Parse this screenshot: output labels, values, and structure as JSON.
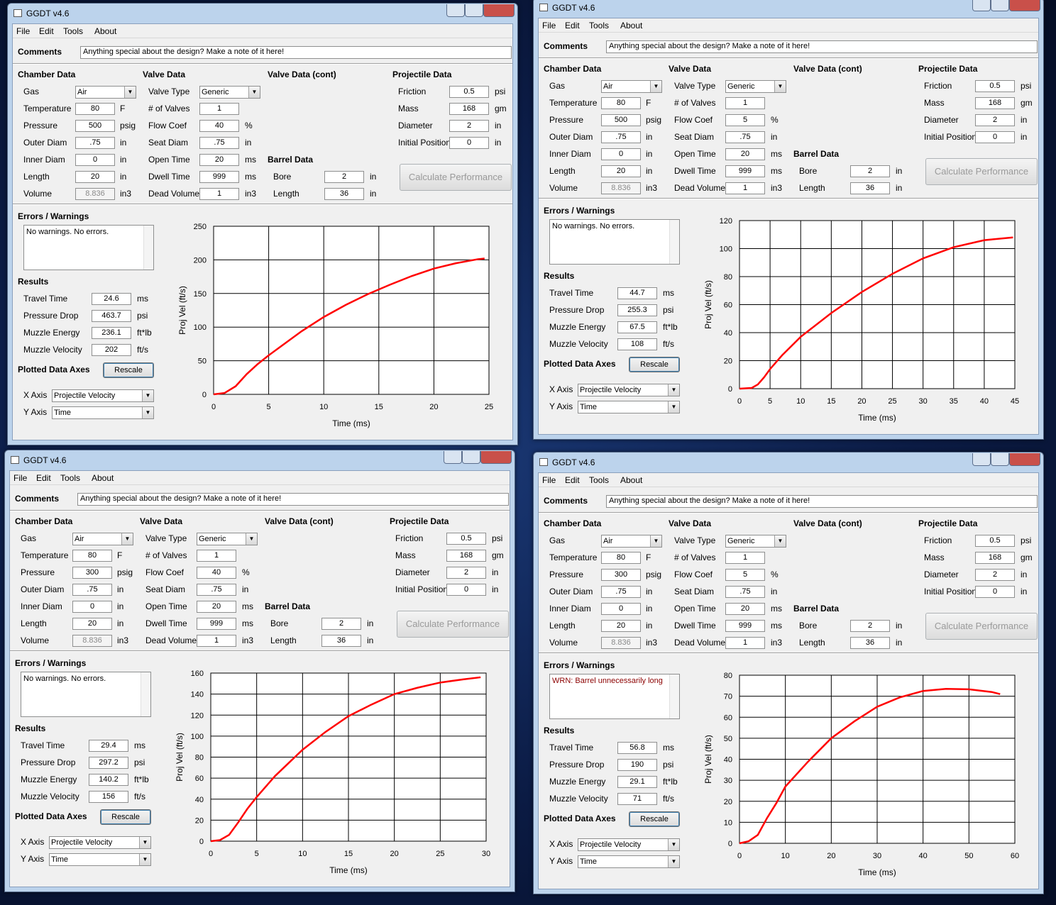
{
  "windows": [
    {
      "title": "GGDT v4.6",
      "menu": [
        "File",
        "Edit",
        "Tools",
        "About"
      ],
      "comments_label": "Comments",
      "comments": "Anything special about the design?  Make a note of it here!",
      "chamber": {
        "header": "Chamber Data",
        "fields": [
          {
            "label": "Gas",
            "value": "Air"
          },
          {
            "label": "Temperature",
            "value": "80",
            "unit": "F"
          },
          {
            "label": "Pressure",
            "value": "500",
            "unit": "psig"
          },
          {
            "label": "Outer Diam",
            "value": ".75",
            "unit": "in"
          },
          {
            "label": "Inner Diam",
            "value": "0",
            "unit": "in"
          },
          {
            "label": "Length",
            "value": "20",
            "unit": "in"
          },
          {
            "label": "Volume",
            "value": "8.836",
            "unit": "in3"
          }
        ]
      },
      "valve": {
        "header": "Valve Data",
        "fields": [
          {
            "label": "Valve Type",
            "value": "Generic"
          },
          {
            "label": "# of Valves",
            "value": "1"
          },
          {
            "label": "Flow Coef",
            "value": "40",
            "unit": "%"
          },
          {
            "label": "Seat Diam",
            "value": ".75",
            "unit": "in"
          },
          {
            "label": "Open Time",
            "value": "20",
            "unit": "ms"
          },
          {
            "label": "Dwell Time",
            "value": "999",
            "unit": "ms"
          },
          {
            "label": "Dead Volume",
            "value": "1",
            "unit": "in3"
          }
        ]
      },
      "valve_cont": {
        "header": "Valve Data (cont)"
      },
      "barrel": {
        "header": "Barrel Data",
        "fields": [
          {
            "label": "Bore",
            "value": "2",
            "unit": "in"
          },
          {
            "label": "Length",
            "value": "36",
            "unit": "in"
          }
        ]
      },
      "projectile": {
        "header": "Projectile Data",
        "fields": [
          {
            "label": "Friction",
            "value": "0.5",
            "unit": "psi"
          },
          {
            "label": "Mass",
            "value": "168",
            "unit": "gm"
          },
          {
            "label": "Diameter",
            "value": "2",
            "unit": "in"
          },
          {
            "label": "Initial Position",
            "value": "0",
            "unit": "in"
          }
        ]
      },
      "calculate": "Calculate Performance",
      "errors_label": "Errors / Warnings",
      "errors": "No warnings.  No errors.",
      "errors_color": "#000000",
      "results": {
        "header": "Results",
        "fields": [
          {
            "label": "Travel Time",
            "value": "24.6",
            "unit": "ms"
          },
          {
            "label": "Pressure Drop",
            "value": "463.7",
            "unit": "psi"
          },
          {
            "label": "Muzzle Energy",
            "value": "236.1",
            "unit": "ft*lb"
          },
          {
            "label": "Muzzle Velocity",
            "value": "202",
            "unit": "ft/s"
          }
        ]
      },
      "axes": {
        "header": "Plotted Data Axes",
        "rescale": "Rescale",
        "fields": [
          {
            "label": "X Axis",
            "value": "Projectile Velocity"
          },
          {
            "label": "Y Axis",
            "value": "Time"
          }
        ]
      }
    },
    {
      "title": "GGDT v4.6",
      "menu": [
        "File",
        "Edit",
        "Tools",
        "About"
      ],
      "comments_label": "Comments",
      "comments": "Anything special about the design?  Make a note of it here!",
      "chamber": {
        "header": "Chamber Data",
        "fields": [
          {
            "label": "Gas",
            "value": "Air"
          },
          {
            "label": "Temperature",
            "value": "80",
            "unit": "F"
          },
          {
            "label": "Pressure",
            "value": "500",
            "unit": "psig"
          },
          {
            "label": "Outer Diam",
            "value": ".75",
            "unit": "in"
          },
          {
            "label": "Inner Diam",
            "value": "0",
            "unit": "in"
          },
          {
            "label": "Length",
            "value": "20",
            "unit": "in"
          },
          {
            "label": "Volume",
            "value": "8.836",
            "unit": "in3"
          }
        ]
      },
      "valve": {
        "header": "Valve Data",
        "fields": [
          {
            "label": "Valve Type",
            "value": "Generic"
          },
          {
            "label": "# of Valves",
            "value": "1"
          },
          {
            "label": "Flow Coef",
            "value": "5",
            "unit": "%"
          },
          {
            "label": "Seat Diam",
            "value": ".75",
            "unit": "in"
          },
          {
            "label": "Open Time",
            "value": "20",
            "unit": "ms"
          },
          {
            "label": "Dwell Time",
            "value": "999",
            "unit": "ms"
          },
          {
            "label": "Dead Volume",
            "value": "1",
            "unit": "in3"
          }
        ]
      },
      "valve_cont": {
        "header": "Valve Data (cont)"
      },
      "barrel": {
        "header": "Barrel Data",
        "fields": [
          {
            "label": "Bore",
            "value": "2",
            "unit": "in"
          },
          {
            "label": "Length",
            "value": "36",
            "unit": "in"
          }
        ]
      },
      "projectile": {
        "header": "Projectile Data",
        "fields": [
          {
            "label": "Friction",
            "value": "0.5",
            "unit": "psi"
          },
          {
            "label": "Mass",
            "value": "168",
            "unit": "gm"
          },
          {
            "label": "Diameter",
            "value": "2",
            "unit": "in"
          },
          {
            "label": "Initial Position",
            "value": "0",
            "unit": "in"
          }
        ]
      },
      "calculate": "Calculate Performance",
      "errors_label": "Errors / Warnings",
      "errors": "No warnings.  No errors.",
      "errors_color": "#000000",
      "results": {
        "header": "Results",
        "fields": [
          {
            "label": "Travel Time",
            "value": "44.7",
            "unit": "ms"
          },
          {
            "label": "Pressure Drop",
            "value": "255.3",
            "unit": "psi"
          },
          {
            "label": "Muzzle Energy",
            "value": "67.5",
            "unit": "ft*lb"
          },
          {
            "label": "Muzzle Velocity",
            "value": "108",
            "unit": "ft/s"
          }
        ]
      },
      "axes": {
        "header": "Plotted Data Axes",
        "rescale": "Rescale",
        "fields": [
          {
            "label": "X Axis",
            "value": "Projectile Velocity"
          },
          {
            "label": "Y Axis",
            "value": "Time"
          }
        ]
      }
    },
    {
      "title": "GGDT v4.6",
      "menu": [
        "File",
        "Edit",
        "Tools",
        "About"
      ],
      "comments_label": "Comments",
      "comments": "Anything special about the design?  Make a note of it here!",
      "chamber": {
        "header": "Chamber Data",
        "fields": [
          {
            "label": "Gas",
            "value": "Air"
          },
          {
            "label": "Temperature",
            "value": "80",
            "unit": "F"
          },
          {
            "label": "Pressure",
            "value": "300",
            "unit": "psig"
          },
          {
            "label": "Outer Diam",
            "value": ".75",
            "unit": "in"
          },
          {
            "label": "Inner Diam",
            "value": "0",
            "unit": "in"
          },
          {
            "label": "Length",
            "value": "20",
            "unit": "in"
          },
          {
            "label": "Volume",
            "value": "8.836",
            "unit": "in3"
          }
        ]
      },
      "valve": {
        "header": "Valve Data",
        "fields": [
          {
            "label": "Valve Type",
            "value": "Generic"
          },
          {
            "label": "# of Valves",
            "value": "1"
          },
          {
            "label": "Flow Coef",
            "value": "40",
            "unit": "%"
          },
          {
            "label": "Seat Diam",
            "value": ".75",
            "unit": "in"
          },
          {
            "label": "Open Time",
            "value": "20",
            "unit": "ms"
          },
          {
            "label": "Dwell Time",
            "value": "999",
            "unit": "ms"
          },
          {
            "label": "Dead Volume",
            "value": "1",
            "unit": "in3"
          }
        ]
      },
      "valve_cont": {
        "header": "Valve Data (cont)"
      },
      "barrel": {
        "header": "Barrel Data",
        "fields": [
          {
            "label": "Bore",
            "value": "2",
            "unit": "in"
          },
          {
            "label": "Length",
            "value": "36",
            "unit": "in"
          }
        ]
      },
      "projectile": {
        "header": "Projectile Data",
        "fields": [
          {
            "label": "Friction",
            "value": "0.5",
            "unit": "psi"
          },
          {
            "label": "Mass",
            "value": "168",
            "unit": "gm"
          },
          {
            "label": "Diameter",
            "value": "2",
            "unit": "in"
          },
          {
            "label": "Initial Position",
            "value": "0",
            "unit": "in"
          }
        ]
      },
      "calculate": "Calculate Performance",
      "errors_label": "Errors / Warnings",
      "errors": "No warnings.  No errors.",
      "errors_color": "#000000",
      "results": {
        "header": "Results",
        "fields": [
          {
            "label": "Travel Time",
            "value": "29.4",
            "unit": "ms"
          },
          {
            "label": "Pressure Drop",
            "value": "297.2",
            "unit": "psi"
          },
          {
            "label": "Muzzle Energy",
            "value": "140.2",
            "unit": "ft*lb"
          },
          {
            "label": "Muzzle Velocity",
            "value": "156",
            "unit": "ft/s"
          }
        ]
      },
      "axes": {
        "header": "Plotted Data Axes",
        "rescale": "Rescale",
        "fields": [
          {
            "label": "X Axis",
            "value": "Projectile Velocity"
          },
          {
            "label": "Y Axis",
            "value": "Time"
          }
        ]
      }
    },
    {
      "title": "GGDT v4.6",
      "menu": [
        "File",
        "Edit",
        "Tools",
        "About"
      ],
      "comments_label": "Comments",
      "comments": "Anything special about the design?  Make a note of it here!",
      "chamber": {
        "header": "Chamber Data",
        "fields": [
          {
            "label": "Gas",
            "value": "Air"
          },
          {
            "label": "Temperature",
            "value": "80",
            "unit": "F"
          },
          {
            "label": "Pressure",
            "value": "300",
            "unit": "psig"
          },
          {
            "label": "Outer Diam",
            "value": ".75",
            "unit": "in"
          },
          {
            "label": "Inner Diam",
            "value": "0",
            "unit": "in"
          },
          {
            "label": "Length",
            "value": "20",
            "unit": "in"
          },
          {
            "label": "Volume",
            "value": "8.836",
            "unit": "in3"
          }
        ]
      },
      "valve": {
        "header": "Valve Data",
        "fields": [
          {
            "label": "Valve Type",
            "value": "Generic"
          },
          {
            "label": "# of Valves",
            "value": "1"
          },
          {
            "label": "Flow Coef",
            "value": "5",
            "unit": "%"
          },
          {
            "label": "Seat Diam",
            "value": ".75",
            "unit": "in"
          },
          {
            "label": "Open Time",
            "value": "20",
            "unit": "ms"
          },
          {
            "label": "Dwell Time",
            "value": "999",
            "unit": "ms"
          },
          {
            "label": "Dead Volume",
            "value": "1",
            "unit": "in3"
          }
        ]
      },
      "valve_cont": {
        "header": "Valve Data (cont)"
      },
      "barrel": {
        "header": "Barrel Data",
        "fields": [
          {
            "label": "Bore",
            "value": "2",
            "unit": "in"
          },
          {
            "label": "Length",
            "value": "36",
            "unit": "in"
          }
        ]
      },
      "projectile": {
        "header": "Projectile Data",
        "fields": [
          {
            "label": "Friction",
            "value": "0.5",
            "unit": "psi"
          },
          {
            "label": "Mass",
            "value": "168",
            "unit": "gm"
          },
          {
            "label": "Diameter",
            "value": "2",
            "unit": "in"
          },
          {
            "label": "Initial Position",
            "value": "0",
            "unit": "in"
          }
        ]
      },
      "calculate": "Calculate Performance",
      "errors_label": "Errors / Warnings",
      "errors": "WRN: Barrel unnecessarily long",
      "errors_color": "#8b0000",
      "results": {
        "header": "Results",
        "fields": [
          {
            "label": "Travel Time",
            "value": "56.8",
            "unit": "ms"
          },
          {
            "label": "Pressure Drop",
            "value": "190",
            "unit": "psi"
          },
          {
            "label": "Muzzle Energy",
            "value": "29.1",
            "unit": "ft*lb"
          },
          {
            "label": "Muzzle Velocity",
            "value": "71",
            "unit": "ft/s"
          }
        ]
      },
      "axes": {
        "header": "Plotted Data Axes",
        "rescale": "Rescale",
        "fields": [
          {
            "label": "X Axis",
            "value": "Projectile Velocity"
          },
          {
            "label": "Y Axis",
            "value": "Time"
          }
        ]
      }
    }
  ],
  "chart_data": [
    {
      "type": "line",
      "xlabel": "Time (ms)",
      "ylabel": "Proj Vel (ft/s)",
      "color": "#ff0000",
      "grid": true,
      "x": [
        0,
        1,
        2,
        3,
        4,
        5,
        6,
        8,
        10,
        12,
        14,
        16,
        18,
        20,
        22,
        24,
        24.6
      ],
      "values": [
        0,
        2,
        12,
        30,
        45,
        58,
        70,
        94,
        115,
        133,
        149,
        163,
        176,
        187,
        195,
        201,
        202
      ],
      "xlim": [
        0,
        25
      ],
      "xticks": [
        0,
        5,
        10,
        15,
        20,
        25
      ],
      "ylim": [
        0,
        250
      ],
      "yticks": [
        0,
        50,
        100,
        150,
        200,
        250
      ]
    },
    {
      "type": "line",
      "xlabel": "Time (ms)",
      "ylabel": "Proj Vel (ft/s)",
      "color": "#ff0000",
      "grid": true,
      "x": [
        0,
        2,
        3,
        4,
        5,
        7,
        10,
        15,
        20,
        25,
        30,
        35,
        40,
        44.7
      ],
      "values": [
        0,
        0.5,
        3,
        8,
        14,
        24,
        37,
        54,
        69,
        82,
        93,
        101,
        106,
        108
      ],
      "xlim": [
        0,
        45
      ],
      "xticks": [
        0,
        5,
        10,
        15,
        20,
        25,
        30,
        35,
        40,
        45
      ],
      "ylim": [
        0,
        120
      ],
      "yticks": [
        0,
        20,
        40,
        60,
        80,
        100,
        120
      ]
    },
    {
      "type": "line",
      "xlabel": "Time (ms)",
      "ylabel": "Proj Vel (ft/s)",
      "color": "#ff0000",
      "grid": true,
      "x": [
        0,
        1,
        2,
        3,
        4,
        5,
        7,
        10,
        12.5,
        15,
        17.5,
        20,
        22.5,
        25,
        27.5,
        29.4
      ],
      "values": [
        0,
        1,
        6,
        18,
        31,
        42,
        62,
        87,
        104,
        119,
        130,
        140,
        146,
        151,
        154,
        156
      ],
      "xlim": [
        0,
        30
      ],
      "xticks": [
        0,
        5,
        10,
        15,
        20,
        25,
        30
      ],
      "ylim": [
        0,
        160
      ],
      "yticks": [
        0,
        20,
        40,
        60,
        80,
        100,
        120,
        140,
        160
      ]
    },
    {
      "type": "line",
      "xlabel": "Time (ms)",
      "ylabel": "Proj Vel (ft/s)",
      "color": "#ff0000",
      "grid": true,
      "x": [
        0,
        2,
        4,
        6,
        8,
        10,
        15,
        20,
        25,
        30,
        35,
        40,
        45,
        50,
        55,
        56.8
      ],
      "values": [
        0,
        1,
        4,
        12,
        19,
        27,
        39,
        50,
        58,
        65,
        69.5,
        72.5,
        73.5,
        73.3,
        72,
        71
      ],
      "xlim": [
        0,
        60
      ],
      "xticks": [
        0,
        10,
        20,
        30,
        40,
        50,
        60
      ],
      "ylim": [
        0,
        80
      ],
      "yticks": [
        0,
        10,
        20,
        30,
        40,
        50,
        60,
        70,
        80
      ]
    }
  ]
}
